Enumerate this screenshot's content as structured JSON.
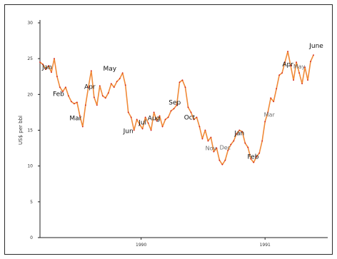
{
  "chart_data": {
    "type": "line",
    "title": "",
    "xlabel": "",
    "ylabel": "US$ per bbl",
    "ylim": [
      0,
      30
    ],
    "xlim": [
      0,
      100
    ],
    "yticks": [
      0,
      5,
      10,
      15,
      20,
      25,
      30
    ],
    "ytick_labels": [
      "0",
      "5",
      "10",
      "15",
      "20",
      "25",
      "30"
    ],
    "xticks": [
      [
        35.5,
        "1990"
      ],
      [
        79,
        "1991"
      ]
    ],
    "grid": false,
    "colors": {
      "line": "#f08a38",
      "point": "#d21e1e"
    },
    "series": [
      {
        "values": [
          [
            0,
            24.5
          ],
          [
            1,
            24.2
          ],
          [
            2,
            23.5
          ],
          [
            3,
            24.0
          ],
          [
            4,
            23.1
          ],
          [
            5,
            25.0
          ],
          [
            6,
            22.5
          ],
          [
            7,
            21.0
          ],
          [
            8,
            20.4
          ],
          [
            9,
            21.0
          ],
          [
            10,
            19.8
          ],
          [
            11,
            19.0
          ],
          [
            12,
            18.7
          ],
          [
            13,
            18.9
          ],
          [
            14,
            17.0
          ],
          [
            15,
            15.5
          ],
          [
            16,
            18.5
          ],
          [
            17,
            21.0
          ],
          [
            18,
            23.3
          ],
          [
            19,
            19.6
          ],
          [
            20,
            18.5
          ],
          [
            21,
            21.2
          ],
          [
            22,
            19.8
          ],
          [
            23,
            19.5
          ],
          [
            24,
            20.2
          ],
          [
            25,
            21.5
          ],
          [
            26,
            21.0
          ],
          [
            27,
            21.8
          ],
          [
            28,
            22.2
          ],
          [
            29,
            23.0
          ],
          [
            30,
            21.3
          ],
          [
            31,
            17.5
          ],
          [
            32,
            16.8
          ],
          [
            33,
            15.0
          ],
          [
            34,
            16.5
          ],
          [
            35,
            15.8
          ],
          [
            36,
            15.2
          ],
          [
            37,
            16.8
          ],
          [
            38,
            16.0
          ],
          [
            39,
            15.0
          ],
          [
            40,
            17.5
          ],
          [
            41,
            16.3
          ],
          [
            42,
            17.0
          ],
          [
            43,
            15.5
          ],
          [
            44,
            16.5
          ],
          [
            45,
            16.8
          ],
          [
            46,
            17.7
          ],
          [
            47,
            18.0
          ],
          [
            48,
            18.5
          ],
          [
            49,
            21.7
          ],
          [
            50,
            22.0
          ],
          [
            51,
            21.0
          ],
          [
            52,
            18.2
          ],
          [
            53,
            17.5
          ],
          [
            54,
            16.5
          ],
          [
            55,
            16.8
          ],
          [
            56,
            15.5
          ],
          [
            57,
            13.8
          ],
          [
            58,
            15.0
          ],
          [
            59,
            13.5
          ],
          [
            60,
            14.0
          ],
          [
            61,
            12.0
          ],
          [
            62,
            12.5
          ],
          [
            63,
            10.8
          ],
          [
            64,
            10.2
          ],
          [
            65,
            10.8
          ],
          [
            66,
            12.2
          ],
          [
            67,
            13.0
          ],
          [
            68,
            13.5
          ],
          [
            69,
            14.5
          ],
          [
            70,
            15.0
          ],
          [
            71,
            14.8
          ],
          [
            72,
            13.2
          ],
          [
            73,
            12.6
          ],
          [
            74,
            11.0
          ],
          [
            75,
            10.5
          ],
          [
            76,
            11.3
          ],
          [
            77,
            11.8
          ],
          [
            78,
            13.5
          ],
          [
            79,
            16.2
          ],
          [
            80,
            17.5
          ],
          [
            81,
            19.5
          ],
          [
            82,
            19.0
          ],
          [
            83,
            20.8
          ],
          [
            84,
            22.7
          ],
          [
            85,
            23.0
          ],
          [
            86,
            24.5
          ],
          [
            87,
            26.0
          ],
          [
            88,
            24.0
          ],
          [
            89,
            22.0
          ],
          [
            90,
            24.5
          ],
          [
            91,
            23.0
          ],
          [
            92,
            21.5
          ],
          [
            93,
            23.8
          ],
          [
            94,
            22.0
          ],
          [
            95,
            24.6
          ],
          [
            96,
            25.5
          ]
        ]
      }
    ],
    "annotations": [
      {
        "text": "Jan",
        "x": 2.5,
        "y": 23.5,
        "style": "dark"
      },
      {
        "text": "Feb",
        "x": 6.5,
        "y": 19.8,
        "style": "dark"
      },
      {
        "text": "Mar",
        "x": 12.5,
        "y": 16.4,
        "style": "dark"
      },
      {
        "text": "Apr",
        "x": 17.5,
        "y": 20.8,
        "style": "dark"
      },
      {
        "text": "May",
        "x": 24.5,
        "y": 23.3,
        "style": "dark"
      },
      {
        "text": "Jun",
        "x": 31,
        "y": 14.6,
        "style": "dark"
      },
      {
        "text": "Jul",
        "x": 36,
        "y": 15.8,
        "style": "dark"
      },
      {
        "text": "Aug",
        "x": 40,
        "y": 16.4,
        "style": "dark"
      },
      {
        "text": "Sep",
        "x": 47.3,
        "y": 18.6,
        "style": "dark"
      },
      {
        "text": "Oct",
        "x": 52.5,
        "y": 16.5,
        "style": "dark"
      },
      {
        "text": "Nov",
        "x": 60,
        "y": 12.2,
        "style": "light"
      },
      {
        "text": "Dec",
        "x": 65,
        "y": 12.3,
        "style": "light"
      },
      {
        "text": "Jan",
        "x": 70,
        "y": 14.3,
        "style": "dark"
      },
      {
        "text": "Feb",
        "x": 74.8,
        "y": 11.0,
        "style": "dark"
      },
      {
        "text": "Mar",
        "x": 80.5,
        "y": 16.9,
        "style": "light"
      },
      {
        "text": "Apr",
        "x": 87,
        "y": 23.9,
        "style": "dark"
      },
      {
        "text": "May",
        "x": 91,
        "y": 23.6,
        "style": "light"
      },
      {
        "text": "June",
        "x": 97,
        "y": 26.5,
        "style": "dark"
      }
    ]
  }
}
